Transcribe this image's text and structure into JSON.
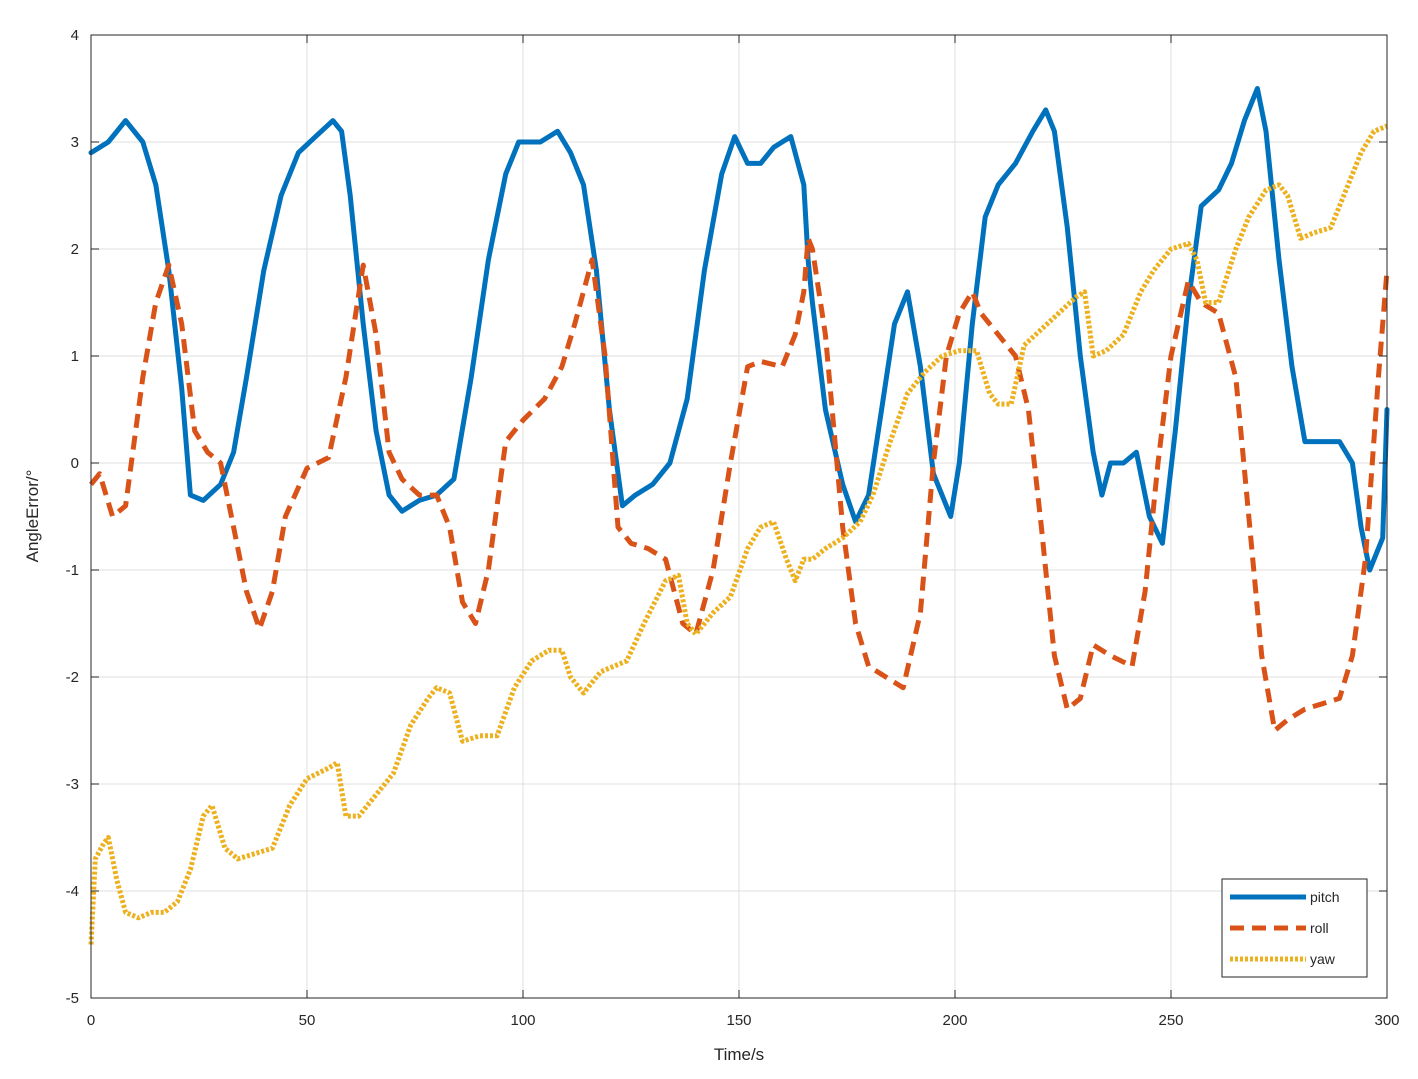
{
  "chart_data": {
    "type": "line",
    "title": "",
    "xlabel": "Time/s",
    "ylabel": "AngleError/°",
    "xlim": [
      0,
      300
    ],
    "ylim": [
      -5,
      4
    ],
    "xticks": [
      0,
      50,
      100,
      150,
      200,
      250,
      300
    ],
    "yticks": [
      -5,
      -4,
      -3,
      -2,
      -1,
      0,
      1,
      2,
      3,
      4
    ],
    "xtick_labels": [
      "0",
      "50",
      "100",
      "150",
      "200",
      "250",
      "300"
    ],
    "ytick_labels": [
      "-5",
      "-4",
      "-3",
      "-2",
      "-1",
      "0",
      "1",
      "2",
      "3",
      "4"
    ],
    "grid": true,
    "legend_position": "bottom-right",
    "series": [
      {
        "name": "pitch",
        "color": "#0072BD",
        "style": "solid",
        "x": [
          0,
          4,
          8,
          12,
          15,
          18,
          21,
          23,
          26,
          30,
          33,
          36,
          40,
          44,
          48,
          52,
          56,
          58,
          60,
          63,
          66,
          69,
          72,
          76,
          80,
          84,
          88,
          92,
          96,
          99,
          104,
          108,
          111,
          114,
          117,
          120,
          123,
          126,
          130,
          134,
          138,
          142,
          146,
          149,
          152,
          155,
          158,
          162,
          165,
          166,
          167,
          170,
          174,
          177,
          180,
          183,
          186,
          189,
          192,
          195,
          199,
          201,
          204,
          207,
          210,
          214,
          218,
          221,
          223,
          226,
          229,
          232,
          234,
          236,
          239,
          242,
          245,
          248,
          251,
          254,
          257,
          261,
          264,
          267,
          270,
          272,
          275,
          278,
          281,
          285,
          289,
          292,
          294,
          296,
          299,
          300
        ],
        "y": [
          2.9,
          3.0,
          3.2,
          3.0,
          2.6,
          1.8,
          0.7,
          -0.3,
          -0.35,
          -0.2,
          0.1,
          0.8,
          1.8,
          2.5,
          2.9,
          3.05,
          3.2,
          3.1,
          2.5,
          1.3,
          0.3,
          -0.3,
          -0.45,
          -0.35,
          -0.3,
          -0.15,
          0.8,
          1.9,
          2.7,
          3.0,
          3.0,
          3.1,
          2.9,
          2.6,
          1.8,
          0.5,
          -0.4,
          -0.3,
          -0.2,
          0.0,
          0.6,
          1.8,
          2.7,
          3.05,
          2.8,
          2.8,
          2.95,
          3.05,
          2.6,
          1.9,
          1.5,
          0.5,
          -0.2,
          -0.55,
          -0.3,
          0.5,
          1.3,
          1.6,
          0.9,
          -0.1,
          -0.5,
          0.0,
          1.3,
          2.3,
          2.6,
          2.8,
          3.1,
          3.3,
          3.1,
          2.2,
          1.0,
          0.1,
          -0.3,
          0.0,
          0.0,
          0.1,
          -0.5,
          -0.75,
          0.3,
          1.5,
          2.4,
          2.55,
          2.8,
          3.2,
          3.5,
          3.1,
          1.9,
          0.9,
          0.2,
          0.2,
          0.2,
          0.0,
          -0.6,
          -1.0,
          -0.7,
          0.5
        ]
      },
      {
        "name": "roll",
        "color": "#D95319",
        "style": "dashed",
        "x": [
          0,
          2,
          5,
          8,
          12,
          15,
          18,
          21,
          24,
          27,
          30,
          33,
          36,
          39,
          42,
          45,
          50,
          55,
          59,
          63,
          66,
          69,
          72,
          76,
          80,
          83,
          86,
          89,
          92,
          96,
          100,
          105,
          109,
          112,
          116,
          119,
          122,
          125,
          129,
          133,
          137,
          140,
          144,
          148,
          152,
          155,
          160,
          163,
          165,
          166,
          167,
          170,
          174,
          177,
          180,
          184,
          188,
          192,
          195,
          198,
          201,
          204,
          206,
          210,
          214,
          217,
          220,
          223,
          226,
          229,
          232,
          236,
          241,
          244,
          247,
          250,
          254,
          257,
          261,
          265,
          268,
          271,
          274,
          277,
          281,
          285,
          289,
          292,
          295,
          298,
          300
        ],
        "y": [
          -0.2,
          -0.1,
          -0.5,
          -0.4,
          0.8,
          1.5,
          1.85,
          1.3,
          0.3,
          0.1,
          0.0,
          -0.6,
          -1.2,
          -1.55,
          -1.2,
          -0.5,
          -0.05,
          0.05,
          0.8,
          1.85,
          1.2,
          0.1,
          -0.15,
          -0.3,
          -0.3,
          -0.6,
          -1.3,
          -1.5,
          -1.0,
          0.2,
          0.4,
          0.6,
          0.9,
          1.3,
          1.9,
          1.0,
          -0.6,
          -0.75,
          -0.8,
          -0.9,
          -1.5,
          -1.6,
          -1.0,
          0.0,
          0.9,
          0.95,
          0.9,
          1.2,
          1.6,
          2.1,
          2.0,
          1.2,
          -0.6,
          -1.5,
          -1.9,
          -2.0,
          -2.1,
          -1.4,
          0.0,
          1.0,
          1.4,
          1.6,
          1.4,
          1.2,
          1.0,
          0.5,
          -0.6,
          -1.8,
          -2.3,
          -2.2,
          -1.7,
          -1.8,
          -1.9,
          -1.2,
          0.0,
          1.0,
          1.7,
          1.5,
          1.4,
          0.8,
          -0.5,
          -1.8,
          -2.5,
          -2.4,
          -2.3,
          -2.25,
          -2.2,
          -1.8,
          -0.9,
          0.8,
          1.8
        ]
      },
      {
        "name": "yaw",
        "color": "#EDB120",
        "style": "dotted",
        "x": [
          0,
          1,
          3,
          4,
          6,
          8,
          11,
          14,
          17,
          20,
          23,
          26,
          28,
          31,
          34,
          38,
          42,
          46,
          50,
          55,
          57,
          59,
          62,
          66,
          70,
          74,
          78,
          80,
          83,
          86,
          90,
          94,
          98,
          102,
          106,
          109,
          111,
          114,
          118,
          121,
          124,
          128,
          133,
          136,
          138,
          140,
          144,
          148,
          152,
          155,
          158,
          161,
          163,
          165,
          167,
          170,
          174,
          178,
          181,
          185,
          189,
          193,
          197,
          201,
          205,
          208,
          210,
          213,
          216,
          220,
          224,
          228,
          230,
          232,
          235,
          239,
          243,
          246,
          250,
          254,
          256,
          258,
          261,
          265,
          268,
          272,
          275,
          277,
          280,
          283,
          287,
          291,
          294,
          297,
          300
        ],
        "y": [
          -4.5,
          -3.7,
          -3.55,
          -3.5,
          -3.9,
          -4.2,
          -4.25,
          -4.2,
          -4.2,
          -4.1,
          -3.8,
          -3.3,
          -3.2,
          -3.6,
          -3.7,
          -3.65,
          -3.6,
          -3.2,
          -2.95,
          -2.85,
          -2.8,
          -3.3,
          -3.3,
          -3.1,
          -2.9,
          -2.45,
          -2.2,
          -2.1,
          -2.15,
          -2.6,
          -2.55,
          -2.55,
          -2.1,
          -1.85,
          -1.75,
          -1.75,
          -2.0,
          -2.15,
          -1.95,
          -1.9,
          -1.85,
          -1.5,
          -1.1,
          -1.05,
          -1.5,
          -1.6,
          -1.4,
          -1.25,
          -0.8,
          -0.6,
          -0.55,
          -0.9,
          -1.1,
          -0.9,
          -0.9,
          -0.8,
          -0.7,
          -0.55,
          -0.3,
          0.2,
          0.65,
          0.85,
          1.0,
          1.05,
          1.05,
          0.65,
          0.55,
          0.55,
          1.1,
          1.25,
          1.4,
          1.55,
          1.6,
          1.0,
          1.05,
          1.2,
          1.6,
          1.8,
          2.0,
          2.05,
          1.9,
          1.5,
          1.5,
          2.0,
          2.3,
          2.55,
          2.6,
          2.5,
          2.1,
          2.15,
          2.2,
          2.6,
          2.9,
          3.1,
          3.15
        ]
      }
    ]
  }
}
